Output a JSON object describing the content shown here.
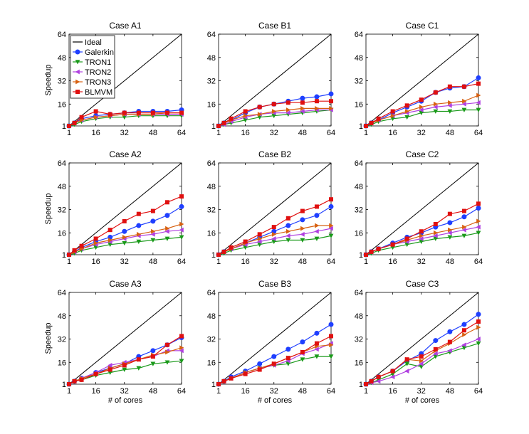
{
  "figure": {
    "xlabel": "# of cores",
    "ylabel": "Speedup"
  },
  "legend": {
    "entries": [
      {
        "name": "Ideal",
        "color": "#000000",
        "marker": "line"
      },
      {
        "name": "Galerkin",
        "color": "#1f3fff",
        "marker": "circle"
      },
      {
        "name": "TRON1",
        "color": "#1a9a1a",
        "marker": "triangle-down"
      },
      {
        "name": "TRON2",
        "color": "#b040e0",
        "marker": "triangle-left"
      },
      {
        "name": "TRON3",
        "color": "#d86010",
        "marker": "triangle-right"
      },
      {
        "name": "BLMVM",
        "color": "#e01010",
        "marker": "square"
      }
    ]
  },
  "chart_data": [
    {
      "type": "line",
      "title": "Case A1",
      "xlabel": "",
      "ylabel": "Speedup",
      "xticks": [
        "1",
        "16",
        "32",
        "48",
        "64"
      ],
      "yticks": [
        "1",
        "16",
        "32",
        "48",
        "64"
      ],
      "xlim": [
        1,
        64
      ],
      "ylim": [
        1,
        64
      ],
      "x": [
        1,
        4,
        8,
        16,
        24,
        32,
        40,
        48,
        56,
        64
      ],
      "series": [
        {
          "name": "Ideal",
          "x": [
            1,
            64
          ],
          "values": [
            1,
            64
          ]
        },
        {
          "name": "Galerkin",
          "values": [
            1,
            3,
            6,
            8,
            9,
            10,
            11,
            11,
            11,
            12
          ]
        },
        {
          "name": "TRON1",
          "values": [
            1,
            2,
            4,
            6,
            7,
            7,
            8,
            8,
            8,
            8
          ]
        },
        {
          "name": "TRON2",
          "values": [
            1,
            3,
            5,
            7,
            8,
            9,
            9,
            9,
            9,
            9
          ]
        },
        {
          "name": "TRON3",
          "values": [
            1,
            3,
            5,
            7,
            8,
            9,
            9,
            9,
            10,
            10
          ]
        },
        {
          "name": "BLMVM",
          "values": [
            1,
            3,
            7,
            11,
            9,
            10,
            10,
            10,
            10,
            10
          ]
        }
      ]
    },
    {
      "type": "line",
      "title": "Case B1",
      "xlabel": "",
      "ylabel": "",
      "xticks": [
        "1",
        "16",
        "32",
        "48",
        "64"
      ],
      "yticks": [
        "1",
        "16",
        "32",
        "48",
        "64"
      ],
      "xlim": [
        1,
        64
      ],
      "ylim": [
        1,
        64
      ],
      "x": [
        1,
        4,
        8,
        16,
        24,
        32,
        40,
        48,
        56,
        64
      ],
      "series": [
        {
          "name": "Ideal",
          "x": [
            1,
            64
          ],
          "values": [
            1,
            64
          ]
        },
        {
          "name": "Galerkin",
          "values": [
            1,
            3,
            5,
            10,
            14,
            16,
            18,
            20,
            21,
            23
          ]
        },
        {
          "name": "TRON1",
          "values": [
            1,
            2,
            3,
            5,
            7,
            8,
            9,
            10,
            11,
            12
          ]
        },
        {
          "name": "TRON2",
          "values": [
            1,
            2,
            4,
            7,
            9,
            10,
            10,
            11,
            12,
            12
          ]
        },
        {
          "name": "TRON3",
          "values": [
            1,
            3,
            5,
            8,
            9,
            11,
            12,
            13,
            13,
            13
          ]
        },
        {
          "name": "BLMVM",
          "values": [
            1,
            3,
            6,
            11,
            14,
            16,
            17,
            17,
            18,
            18
          ]
        }
      ]
    },
    {
      "type": "line",
      "title": "Case C1",
      "xlabel": "",
      "ylabel": "",
      "xticks": [
        "1",
        "16",
        "32",
        "48",
        "64"
      ],
      "yticks": [
        "1",
        "16",
        "32",
        "48",
        "64"
      ],
      "xlim": [
        1,
        64
      ],
      "ylim": [
        1,
        64
      ],
      "x": [
        1,
        4,
        8,
        16,
        24,
        32,
        40,
        48,
        56,
        64
      ],
      "series": [
        {
          "name": "Ideal",
          "x": [
            1,
            64
          ],
          "values": [
            1,
            64
          ]
        },
        {
          "name": "Galerkin",
          "values": [
            1,
            3,
            5,
            10,
            14,
            18,
            24,
            27,
            28,
            34
          ]
        },
        {
          "name": "TRON1",
          "values": [
            1,
            2,
            4,
            6,
            7,
            10,
            11,
            11,
            12,
            12
          ]
        },
        {
          "name": "TRON2",
          "values": [
            1,
            3,
            5,
            8,
            10,
            12,
            14,
            15,
            16,
            17
          ]
        },
        {
          "name": "TRON3",
          "values": [
            1,
            3,
            5,
            8,
            11,
            14,
            16,
            17,
            18,
            22
          ]
        },
        {
          "name": "BLMVM",
          "values": [
            1,
            3,
            6,
            11,
            15,
            19,
            24,
            28,
            28,
            30
          ]
        }
      ]
    },
    {
      "type": "line",
      "title": "Case A2",
      "xlabel": "",
      "ylabel": "Speedup",
      "xticks": [
        "1",
        "16",
        "32",
        "48",
        "64"
      ],
      "yticks": [
        "1",
        "16",
        "32",
        "48",
        "64"
      ],
      "xlim": [
        1,
        64
      ],
      "ylim": [
        1,
        64
      ],
      "x": [
        1,
        4,
        8,
        16,
        24,
        32,
        40,
        48,
        56,
        64
      ],
      "series": [
        {
          "name": "Ideal",
          "x": [
            1,
            64
          ],
          "values": [
            1,
            64
          ]
        },
        {
          "name": "Galerkin",
          "values": [
            1,
            3,
            6,
            10,
            13,
            17,
            21,
            24,
            28,
            34
          ]
        },
        {
          "name": "TRON1",
          "values": [
            1,
            2,
            4,
            6,
            8,
            9,
            10,
            11,
            12,
            13
          ]
        },
        {
          "name": "TRON2",
          "values": [
            1,
            3,
            5,
            8,
            10,
            12,
            14,
            15,
            17,
            18
          ]
        },
        {
          "name": "TRON3",
          "values": [
            1,
            3,
            5,
            9,
            11,
            13,
            15,
            17,
            19,
            22
          ]
        },
        {
          "name": "BLMVM",
          "values": [
            1,
            4,
            7,
            12,
            18,
            24,
            29,
            31,
            37,
            41
          ]
        }
      ]
    },
    {
      "type": "line",
      "title": "Case B2",
      "xlabel": "",
      "ylabel": "",
      "xticks": [
        "1",
        "16",
        "32",
        "48",
        "64"
      ],
      "yticks": [
        "1",
        "16",
        "32",
        "48",
        "64"
      ],
      "xlim": [
        1,
        64
      ],
      "ylim": [
        1,
        64
      ],
      "x": [
        1,
        4,
        8,
        16,
        24,
        32,
        40,
        48,
        56,
        64
      ],
      "series": [
        {
          "name": "Ideal",
          "x": [
            1,
            64
          ],
          "values": [
            1,
            64
          ]
        },
        {
          "name": "Galerkin",
          "values": [
            1,
            3,
            5,
            9,
            13,
            17,
            21,
            25,
            28,
            34
          ]
        },
        {
          "name": "TRON1",
          "values": [
            1,
            2,
            4,
            6,
            8,
            10,
            11,
            11,
            12,
            14
          ]
        },
        {
          "name": "TRON2",
          "values": [
            1,
            3,
            5,
            8,
            10,
            12,
            14,
            15,
            17,
            19
          ]
        },
        {
          "name": "TRON3",
          "values": [
            1,
            3,
            5,
            9,
            12,
            15,
            17,
            19,
            21,
            21
          ]
        },
        {
          "name": "BLMVM",
          "values": [
            1,
            3,
            6,
            10,
            15,
            20,
            26,
            31,
            34,
            39
          ]
        }
      ]
    },
    {
      "type": "line",
      "title": "Case C2",
      "xlabel": "",
      "ylabel": "",
      "xticks": [
        "1",
        "16",
        "32",
        "48",
        "64"
      ],
      "yticks": [
        "1",
        "16",
        "32",
        "48",
        "64"
      ],
      "xlim": [
        1,
        64
      ],
      "ylim": [
        1,
        64
      ],
      "x": [
        1,
        4,
        8,
        16,
        24,
        32,
        40,
        48,
        56,
        64
      ],
      "series": [
        {
          "name": "Ideal",
          "x": [
            1,
            64
          ],
          "values": [
            1,
            64
          ]
        },
        {
          "name": "Galerkin",
          "values": [
            1,
            3,
            5,
            9,
            13,
            16,
            20,
            23,
            27,
            33
          ]
        },
        {
          "name": "TRON1",
          "values": [
            1,
            2,
            4,
            6,
            8,
            10,
            12,
            13,
            14,
            16
          ]
        },
        {
          "name": "TRON2",
          "values": [
            1,
            3,
            5,
            8,
            10,
            12,
            14,
            16,
            18,
            20
          ]
        },
        {
          "name": "TRON3",
          "values": [
            1,
            3,
            5,
            8,
            11,
            14,
            16,
            18,
            20,
            24
          ]
        },
        {
          "name": "BLMVM",
          "values": [
            1,
            3,
            5,
            8,
            12,
            17,
            22,
            29,
            31,
            36
          ]
        }
      ]
    },
    {
      "type": "line",
      "title": "Case A3",
      "xlabel": "# of cores",
      "ylabel": "Speedup",
      "xticks": [
        "1",
        "16",
        "32",
        "48",
        "64"
      ],
      "yticks": [
        "1",
        "16",
        "32",
        "48",
        "64"
      ],
      "xlim": [
        1,
        64
      ],
      "ylim": [
        1,
        64
      ],
      "x": [
        1,
        4,
        8,
        16,
        24,
        32,
        40,
        48,
        56,
        64
      ],
      "series": [
        {
          "name": "Ideal",
          "x": [
            1,
            64
          ],
          "values": [
            1,
            64
          ]
        },
        {
          "name": "Galerkin",
          "values": [
            1,
            3,
            5,
            9,
            12,
            15,
            20,
            24,
            28,
            33
          ]
        },
        {
          "name": "TRON1",
          "values": [
            1,
            3,
            4,
            7,
            9,
            11,
            12,
            15,
            16,
            17
          ]
        },
        {
          "name": "TRON2",
          "values": [
            1,
            3,
            5,
            9,
            14,
            16,
            18,
            20,
            24,
            24
          ]
        },
        {
          "name": "TRON3",
          "values": [
            1,
            3,
            5,
            8,
            12,
            15,
            18,
            21,
            23,
            26
          ]
        },
        {
          "name": "BLMVM",
          "values": [
            1,
            3,
            4,
            8,
            11,
            14,
            18,
            20,
            28,
            34
          ]
        }
      ]
    },
    {
      "type": "line",
      "title": "Case B3",
      "xlabel": "# of cores",
      "ylabel": "",
      "xticks": [
        "1",
        "16",
        "32",
        "48",
        "64"
      ],
      "yticks": [
        "1",
        "16",
        "32",
        "48",
        "64"
      ],
      "xlim": [
        1,
        64
      ],
      "ylim": [
        1,
        64
      ],
      "x": [
        1,
        4,
        8,
        16,
        24,
        32,
        40,
        48,
        56,
        64
      ],
      "series": [
        {
          "name": "Ideal",
          "x": [
            1,
            64
          ],
          "values": [
            1,
            64
          ]
        },
        {
          "name": "Galerkin",
          "values": [
            1,
            3,
            6,
            10,
            15,
            20,
            25,
            30,
            36,
            42
          ]
        },
        {
          "name": "TRON1",
          "values": [
            1,
            3,
            5,
            9,
            12,
            14,
            15,
            18,
            20,
            20
          ]
        },
        {
          "name": "TRON2",
          "values": [
            1,
            3,
            5,
            9,
            12,
            14,
            17,
            22,
            25,
            29
          ]
        },
        {
          "name": "TRON3",
          "values": [
            1,
            3,
            5,
            9,
            12,
            15,
            19,
            23,
            27,
            28
          ]
        },
        {
          "name": "BLMVM",
          "values": [
            1,
            3,
            5,
            8,
            11,
            15,
            19,
            23,
            29,
            34
          ]
        }
      ]
    },
    {
      "type": "line",
      "title": "Case C3",
      "xlabel": "# of cores",
      "ylabel": "",
      "xticks": [
        "1",
        "16",
        "32",
        "48",
        "64"
      ],
      "yticks": [
        "1",
        "16",
        "32",
        "48",
        "64"
      ],
      "xlim": [
        1,
        64
      ],
      "ylim": [
        1,
        64
      ],
      "x": [
        1,
        4,
        8,
        16,
        24,
        32,
        40,
        48,
        56,
        64
      ],
      "series": [
        {
          "name": "Ideal",
          "x": [
            1,
            64
          ],
          "values": [
            1,
            64
          ]
        },
        {
          "name": "Galerkin",
          "values": [
            1,
            3,
            6,
            10,
            17,
            22,
            31,
            37,
            42,
            49
          ]
        },
        {
          "name": "TRON1",
          "values": [
            1,
            2,
            4,
            8,
            15,
            13,
            20,
            23,
            26,
            29
          ]
        },
        {
          "name": "TRON2",
          "values": [
            1,
            2,
            3,
            6,
            10,
            15,
            22,
            24,
            28,
            32
          ]
        },
        {
          "name": "TRON3",
          "values": [
            1,
            3,
            6,
            10,
            18,
            17,
            24,
            29,
            35,
            40
          ]
        },
        {
          "name": "BLMVM",
          "values": [
            1,
            3,
            6,
            10,
            18,
            20,
            25,
            30,
            38,
            44
          ]
        }
      ]
    }
  ]
}
